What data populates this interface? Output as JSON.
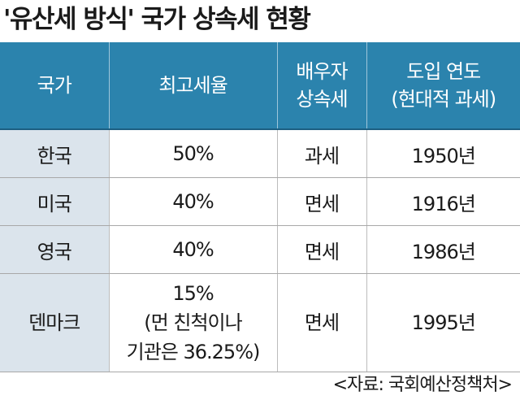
{
  "title": "'유산세 방식' 국가 상속세 현황",
  "headers": {
    "country": "국가",
    "top_rate": "최고세율",
    "spouse_line1": "배우자",
    "spouse_line2": "상속세",
    "year_line1": "도입 연도",
    "year_line2": "(현대적 과세)"
  },
  "rows": [
    {
      "country": "한국",
      "rate": "50%",
      "spouse": "과세",
      "year": "1950년"
    },
    {
      "country": "미국",
      "rate": "40%",
      "spouse": "면세",
      "year": "1916년"
    },
    {
      "country": "영국",
      "rate": "40%",
      "spouse": "면세",
      "year": "1986년"
    },
    {
      "country": "덴마크",
      "rate_line1": "15%",
      "rate_line2": "(먼 친척이나",
      "rate_line3": "기관은 36.25%)",
      "spouse": "면세",
      "year": "1995년"
    }
  ],
  "source": "<자료: 국회예산정책처>"
}
